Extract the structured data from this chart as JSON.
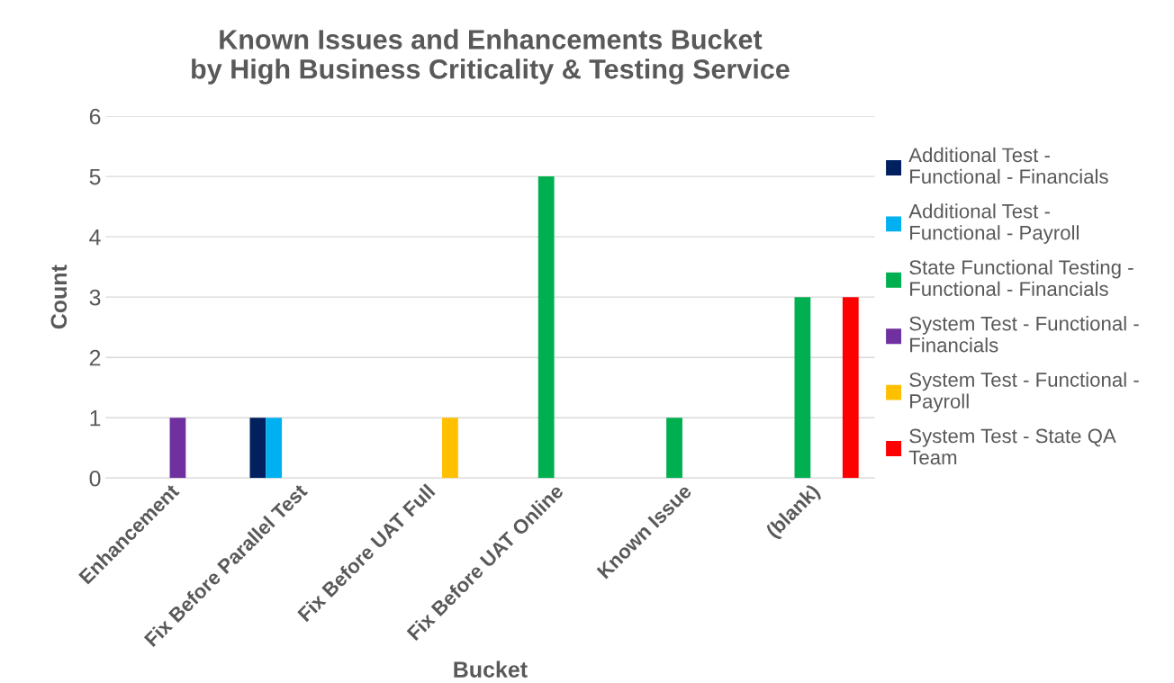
{
  "chart_data": {
    "type": "bar",
    "title": "Known Issues and Enhancements Bucket\nby High Business Criticality & Testing Service",
    "xlabel": "Bucket",
    "ylabel": "Count",
    "categories": [
      "Enhancement",
      "Fix Before Parallel Test",
      "Fix Before UAT Full",
      "Fix Before UAT Online",
      "Known Issue",
      "(blank)"
    ],
    "series": [
      {
        "name": "Additional Test - Functional - Financials",
        "color": "#002060",
        "values": [
          null,
          1,
          null,
          null,
          null,
          null
        ]
      },
      {
        "name": "Additional Test - Functional - Payroll",
        "color": "#00b0f0",
        "values": [
          null,
          1,
          null,
          null,
          null,
          null
        ]
      },
      {
        "name": "State Functional Testing - Functional - Financials",
        "color": "#00b050",
        "values": [
          null,
          null,
          null,
          5,
          1,
          3
        ]
      },
      {
        "name": "System Test - Functional - Financials",
        "color": "#7030a0",
        "values": [
          1,
          null,
          null,
          null,
          null,
          null
        ]
      },
      {
        "name": "System Test - Functional - Payroll",
        "color": "#ffc000",
        "values": [
          null,
          null,
          1,
          null,
          null,
          null
        ]
      },
      {
        "name": "System Test - State QA Team",
        "color": "#ff0000",
        "values": [
          null,
          null,
          null,
          null,
          null,
          3
        ]
      }
    ],
    "ylim": [
      0,
      6
    ],
    "yticks": [
      0,
      1,
      2,
      3,
      4,
      5,
      6
    ],
    "grid": "y",
    "legend": "right"
  }
}
